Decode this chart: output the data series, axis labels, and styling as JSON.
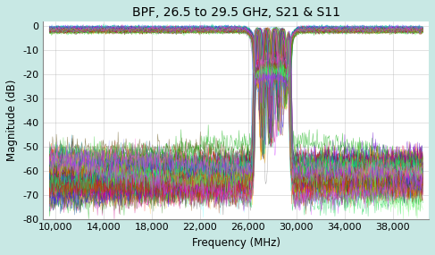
{
  "title": "BPF, 26.5 to 29.5 GHz, S21 & S11",
  "xlabel": "Frequency (MHz)",
  "ylabel": "Magnitude (dB)",
  "xlim": [
    9000,
    41000
  ],
  "ylim": [
    -80,
    2
  ],
  "xticks": [
    10000,
    14000,
    18000,
    22000,
    26000,
    30000,
    34000,
    38000
  ],
  "yticks": [
    0,
    -10,
    -20,
    -30,
    -40,
    -50,
    -60,
    -70,
    -80
  ],
  "bg_color": "#c8e8e4",
  "plot_bg": "#ffffff",
  "n_samples": 100,
  "f_start_mhz": 9500,
  "f_stop_mhz": 40500,
  "n_points": 800,
  "bpf_low": 26500,
  "bpf_high": 29500,
  "title_fontsize": 10,
  "axis_label_fontsize": 8.5,
  "tick_fontsize": 8
}
